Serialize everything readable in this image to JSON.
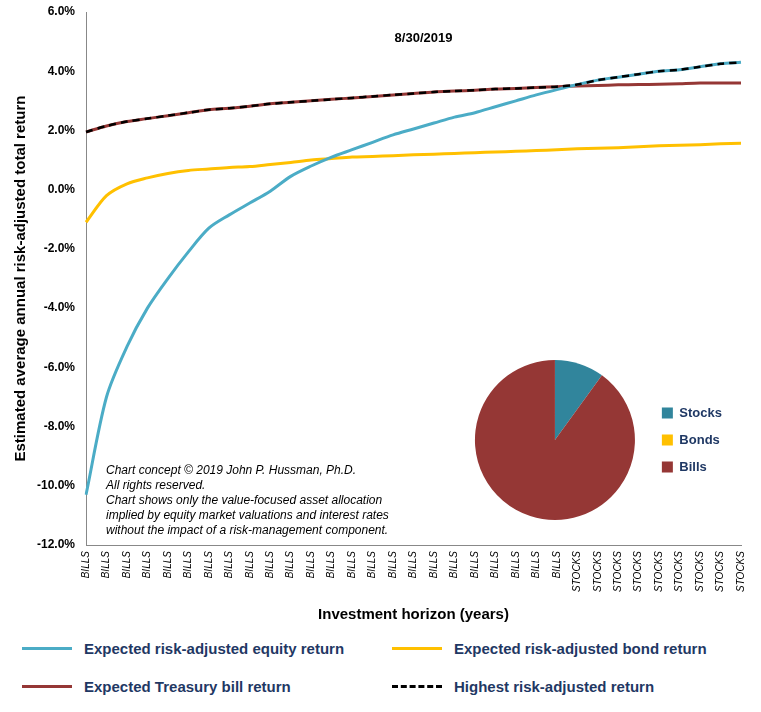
{
  "chart_data": [
    {
      "type": "line",
      "title": "8/30/2019",
      "x_label": "Investment horizon (years)",
      "y_label": "Estimated average annual risk-adjusted total return",
      "categories": [
        "BILLS",
        "BILLS",
        "BILLS",
        "BILLS",
        "BILLS",
        "BILLS",
        "BILLS",
        "BILLS",
        "BILLS",
        "BILLS",
        "BILLS",
        "BILLS",
        "BILLS",
        "BILLS",
        "BILLS",
        "BILLS",
        "BILLS",
        "BILLS",
        "BILLS",
        "BILLS",
        "BILLS",
        "BILLS",
        "BILLS",
        "BILLS",
        "STOCKS",
        "STOCKS",
        "STOCKS",
        "STOCKS",
        "STOCKS",
        "STOCKS",
        "STOCKS",
        "STOCKS",
        "STOCKS"
      ],
      "series": [
        {
          "name": "Expected risk-adjusted equity return",
          "color": "#4BACC6",
          "line_style": "solid",
          "values": [
            -10.3,
            -7.0,
            -5.3,
            -4.0,
            -3.0,
            -2.1,
            -1.3,
            -0.85,
            -0.45,
            -0.05,
            0.45,
            0.8,
            1.1,
            1.35,
            1.6,
            1.85,
            2.05,
            2.25,
            2.45,
            2.6,
            2.8,
            3.0,
            3.2,
            3.38,
            3.55,
            3.7,
            3.8,
            3.9,
            4.0,
            4.05,
            4.15,
            4.25,
            4.3
          ]
        },
        {
          "name": "Expected risk-adjusted bond return",
          "color": "#FFC000",
          "line_style": "solid",
          "values": [
            -1.1,
            -0.2,
            0.2,
            0.4,
            0.55,
            0.65,
            0.7,
            0.75,
            0.78,
            0.85,
            0.92,
            1.0,
            1.05,
            1.1,
            1.12,
            1.15,
            1.18,
            1.2,
            1.22,
            1.25,
            1.27,
            1.3,
            1.32,
            1.35,
            1.38,
            1.4,
            1.42,
            1.45,
            1.48,
            1.5,
            1.52,
            1.55,
            1.57
          ]
        },
        {
          "name": "Expected Treasury bill return",
          "color": "#953735",
          "line_style": "solid",
          "values": [
            1.95,
            2.15,
            2.3,
            2.4,
            2.5,
            2.6,
            2.7,
            2.75,
            2.82,
            2.9,
            2.95,
            3.0,
            3.05,
            3.1,
            3.15,
            3.2,
            3.25,
            3.3,
            3.33,
            3.36,
            3.4,
            3.42,
            3.45,
            3.48,
            3.5,
            3.52,
            3.54,
            3.55,
            3.56,
            3.58,
            3.6,
            3.6,
            3.6
          ]
        },
        {
          "name": "Highest risk-adjusted return",
          "color": "#000000",
          "line_style": "dashed",
          "values": [
            1.95,
            2.15,
            2.3,
            2.4,
            2.5,
            2.6,
            2.7,
            2.75,
            2.82,
            2.9,
            2.95,
            3.0,
            3.05,
            3.1,
            3.15,
            3.2,
            3.25,
            3.3,
            3.33,
            3.36,
            3.4,
            3.42,
            3.45,
            3.48,
            3.55,
            3.7,
            3.8,
            3.9,
            4.0,
            4.05,
            4.15,
            4.25,
            4.3
          ]
        }
      ],
      "ylim": [
        -12,
        6
      ],
      "yticks": [
        {
          "value": -12,
          "label": "-12.0%"
        },
        {
          "value": -10,
          "label": "-10.0%"
        },
        {
          "value": -8,
          "label": "-8.0%"
        },
        {
          "value": -6,
          "label": "-6.0%"
        },
        {
          "value": -4,
          "label": "-4.0%"
        },
        {
          "value": -2,
          "label": "-2.0%"
        },
        {
          "value": 0,
          "label": "0.0%"
        },
        {
          "value": 2,
          "label": "2.0%"
        },
        {
          "value": 4,
          "label": "4.0%"
        },
        {
          "value": 6,
          "label": "6.0%"
        }
      ],
      "grid": false,
      "legend": "bottom",
      "annotations": [
        "Chart concept © 2019 John P. Hussman, Ph.D.",
        "All rights reserved.",
        "Chart shows only the value-focused asset allocation",
        "implied by equity market valuations and interest rates",
        "without the impact of a risk-management component."
      ]
    },
    {
      "type": "pie",
      "categories": [
        "Stocks",
        "Bonds",
        "Bills"
      ],
      "values": [
        10,
        0,
        90
      ],
      "colors": [
        "#31859C",
        "#FFC000",
        "#953735"
      ],
      "legend": "right"
    }
  ]
}
